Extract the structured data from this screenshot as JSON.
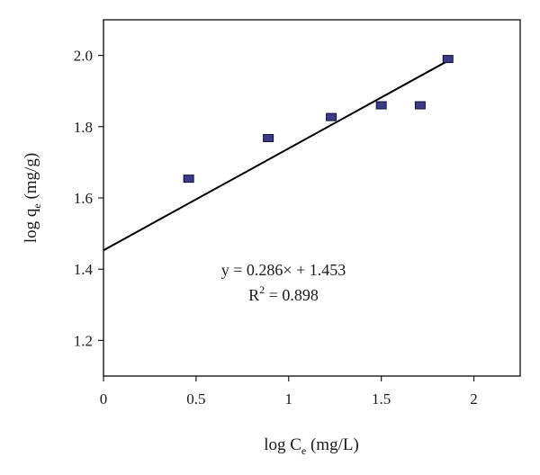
{
  "chart_data": {
    "type": "scatter",
    "xlabel": {
      "prefix": "log C",
      "subscript": "e",
      "suffix": " (mg/L)"
    },
    "ylabel": {
      "prefix": "log q",
      "subscript": "e",
      "suffix": " (mg/g)"
    },
    "xlim": [
      0,
      2.25
    ],
    "ylim": [
      1.1,
      2.1
    ],
    "x_ticks": [
      0,
      0.5,
      1,
      1.5,
      2
    ],
    "x_tick_labels": [
      "0",
      "0.5",
      "1",
      "1.5",
      "2"
    ],
    "y_ticks": [
      1.2,
      1.4,
      1.6,
      1.8,
      2.0
    ],
    "y_tick_labels": [
      "1.2",
      "1.4",
      "1.6",
      "1.8",
      "2.0"
    ],
    "points": [
      {
        "x": 0.46,
        "y": 1.654
      },
      {
        "x": 0.89,
        "y": 1.768
      },
      {
        "x": 1.23,
        "y": 1.827
      },
      {
        "x": 1.5,
        "y": 1.86
      },
      {
        "x": 1.71,
        "y": 1.86
      },
      {
        "x": 1.86,
        "y": 1.99
      }
    ],
    "fit_line": {
      "slope": 0.286,
      "intercept": 1.453,
      "x_range": [
        0,
        1.85
      ]
    },
    "annotation": {
      "equation": "y = 0.286× + 1.453",
      "r2_prefix": "R",
      "r2_superscript": "2",
      "r2_suffix": " = 0.898"
    },
    "grid": false,
    "marker_color": "#3b3a86",
    "line_color": "#000000"
  }
}
